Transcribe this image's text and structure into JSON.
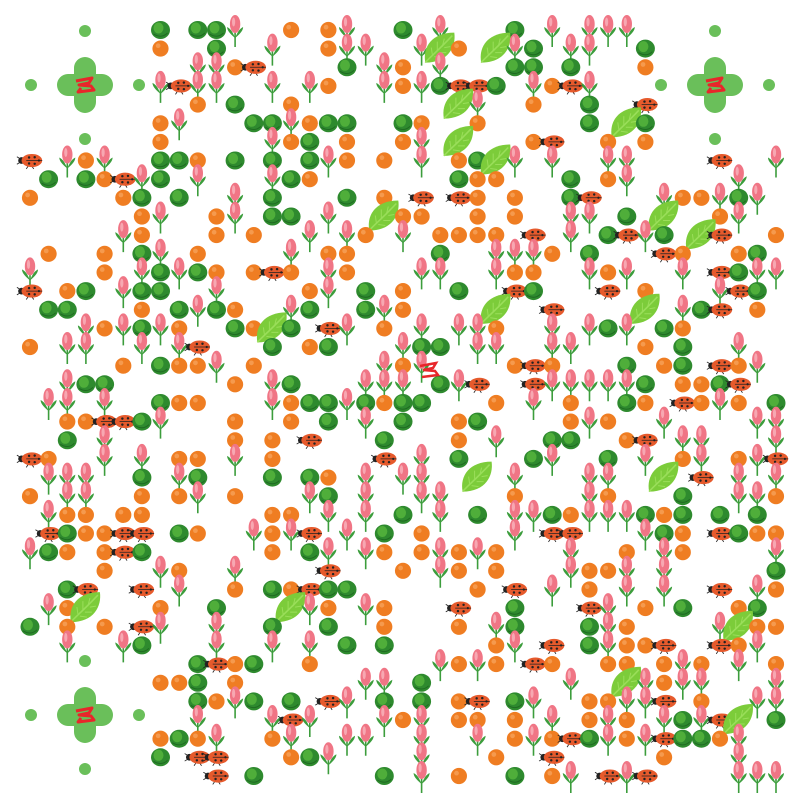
{
  "artwork": {
    "kind": "decorative QR-style code made of garden icons",
    "icons": [
      "pink-tulip-bud-icon",
      "orange-dot-icon",
      "green-leaf-cluster-icon",
      "ladybug-icon",
      "lettuce-leaf-icon",
      "finder-cross-icon"
    ]
  },
  "colors": {
    "background": "#ffffff",
    "orange": "#ef7d22",
    "bud_pink": "#f07585",
    "bud_green": "#3c9d3c",
    "leaf_dark": "#2e8a2e",
    "leaf_light": "#7ccc3a",
    "ladybug_red": "#e65a2c",
    "cross_green": "#6abf5a",
    "cross_red": "#e8262a"
  }
}
